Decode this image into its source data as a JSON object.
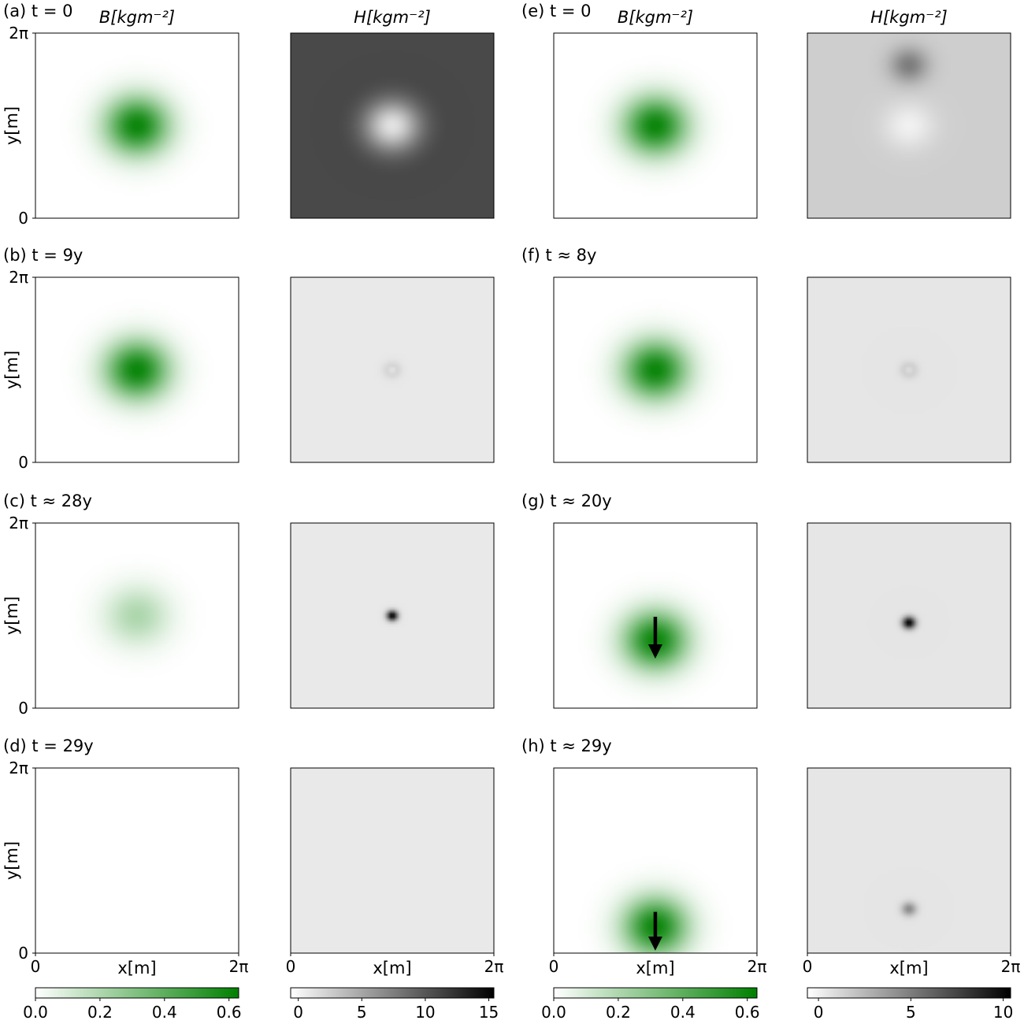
{
  "chart_data": {
    "type": "heatmap",
    "grid": false,
    "axes": {
      "x_label": "x[m]",
      "y_label": "y[m]",
      "x_ticks": [
        "0",
        "2π"
      ],
      "y_ticks": [
        "2π",
        "0"
      ],
      "x_range": [
        0,
        6.283
      ],
      "y_range": [
        0,
        6.283
      ]
    },
    "column_titles": [
      "B[kgm⁻²]",
      "H[kgm⁻²]",
      "B[kgm⁻²]",
      "H[kgm⁻²]"
    ],
    "panels": [
      {
        "label": "(a) t = 0",
        "B": {
          "cx": 3.14,
          "cy": 3.14,
          "sigma": 0.7,
          "peak": 0.6
        },
        "H": {
          "background": 10.8,
          "blobs": [
            {
              "cx": 3.14,
              "cy": 3.14,
              "sigma": 0.62,
              "amp": -10.8
            },
            {
              "cx": 3.14,
              "cy": 3.14,
              "sigma": 1.0,
              "amp": 1.2
            }
          ]
        }
      },
      {
        "label": "(b) t = 9y",
        "B": {
          "cx": 3.14,
          "cy": 3.14,
          "sigma": 0.7,
          "peak": 0.6
        },
        "H": {
          "background": 0.8,
          "blobs": [
            {
              "cx": 3.14,
              "cy": 3.14,
              "sigma": 0.17,
              "amp": 2.6
            },
            {
              "cx": 3.14,
              "cy": 3.14,
              "sigma": 0.09,
              "amp": -2.4
            }
          ]
        }
      },
      {
        "label": "(c) t ≈ 28y",
        "B": {
          "cx": 3.14,
          "cy": 3.14,
          "sigma": 0.7,
          "peak": 0.2
        },
        "H": {
          "background": 0.8,
          "blobs": [
            {
              "cx": 3.14,
              "cy": 3.14,
              "sigma": 0.12,
              "amp": 15
            }
          ]
        }
      },
      {
        "label": "(d) t = 29y",
        "B": {
          "cx": 3.14,
          "cy": 3.14,
          "sigma": 0.7,
          "peak": 0
        },
        "H": {
          "background": 0.8,
          "blobs": []
        }
      },
      {
        "label": "(e) t = 0",
        "B": {
          "cx": 3.14,
          "cy": 3.14,
          "sigma": 0.7,
          "peak": 0.6
        },
        "H": {
          "background": 1.5,
          "blobs": [
            {
              "cx": 3.14,
              "cy": 3.14,
              "sigma": 0.55,
              "amp": -1.5
            },
            {
              "cx": 3.14,
              "cy": 5.2,
              "sigma": 0.42,
              "amp": 3.5
            }
          ]
        }
      },
      {
        "label": "(f) t ≈ 8y",
        "B": {
          "cx": 3.14,
          "cy": 3.14,
          "sigma": 0.7,
          "peak": 0.6
        },
        "H": {
          "background": 0.5,
          "blobs": [
            {
              "cx": 3.14,
              "cy": 3.14,
              "sigma": 0.17,
              "amp": 2.0
            },
            {
              "cx": 3.14,
              "cy": 3.14,
              "sigma": 0.09,
              "amp": -1.8
            }
          ]
        }
      },
      {
        "label": "(g) t ≈ 20y",
        "B": {
          "cx": 3.14,
          "cy": 2.3,
          "sigma": 0.7,
          "peak": 0.6
        },
        "H": {
          "background": 0.5,
          "blobs": [
            {
              "cx": 3.14,
              "cy": 2.9,
              "sigma": 0.14,
              "amp": 10
            }
          ]
        },
        "arrow": {
          "x": 3.14,
          "y_from": 3.1,
          "y_to": 1.9
        }
      },
      {
        "label": "(h) t ≈ 29y",
        "B": {
          "cx": 3.14,
          "cy": 0.9,
          "sigma": 0.7,
          "peak": 0.6
        },
        "H": {
          "background": 0.5,
          "blobs": [
            {
              "cx": 3.14,
              "cy": 1.5,
              "sigma": 0.16,
              "amp": 4
            }
          ]
        },
        "arrow": {
          "x": 3.14,
          "y_from": 1.4,
          "y_to": 0.3
        }
      }
    ],
    "colorbars": [
      {
        "cmap": "green",
        "range": [
          0,
          0.63
        ],
        "ticks": [
          0,
          0.2,
          0.4,
          0.6
        ],
        "tick_labels": [
          "0.0",
          "0.2",
          "0.4",
          "0.6"
        ]
      },
      {
        "cmap": "gray",
        "range": [
          -0.6,
          15.4
        ],
        "ticks": [
          0,
          5,
          10,
          15
        ],
        "tick_labels": [
          "0",
          "5",
          "10",
          "15"
        ]
      },
      {
        "cmap": "green",
        "range": [
          0,
          0.63
        ],
        "ticks": [
          0,
          0.2,
          0.4,
          0.6
        ],
        "tick_labels": [
          "0.0",
          "0.2",
          "0.4",
          "0.6"
        ]
      },
      {
        "cmap": "gray",
        "range": [
          -0.6,
          10.4
        ],
        "ticks": [
          0,
          5,
          10
        ],
        "tick_labels": [
          "0",
          "5",
          "10"
        ]
      }
    ],
    "colors": {
      "green": "#008000",
      "gray_max": "#000000",
      "gray_min": "#ffffff",
      "arrow": "#000000"
    }
  }
}
